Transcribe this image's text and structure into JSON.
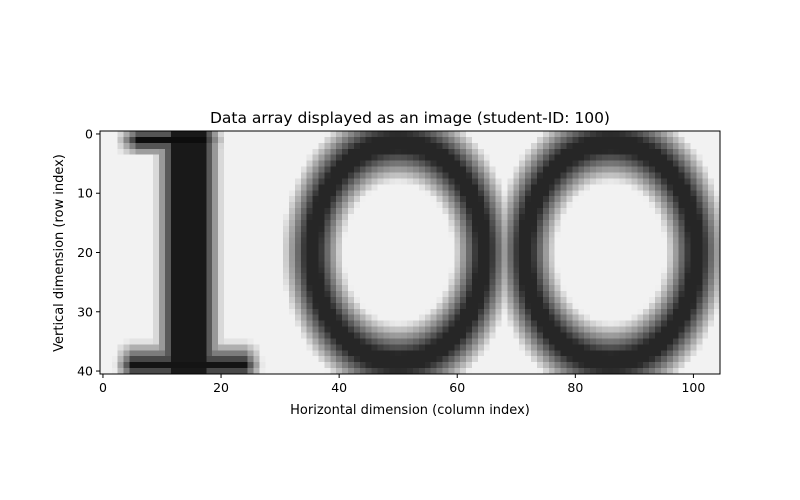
{
  "chart_data": {
    "type": "heatmap",
    "title": "Data array displayed as an image (student-ID: 100)",
    "xlabel": "Horizontal dimension (column index)",
    "ylabel": "Vertical dimension (row index)",
    "xlim": [
      -0.5,
      104.5
    ],
    "ylim": [
      40.5,
      -0.5
    ],
    "xticks": [
      {
        "value": 0,
        "label": "0"
      },
      {
        "value": 20,
        "label": "20"
      },
      {
        "value": 40,
        "label": "40"
      },
      {
        "value": 60,
        "label": "60"
      },
      {
        "value": 80,
        "label": "80"
      },
      {
        "value": 100,
        "label": "100"
      }
    ],
    "yticks": [
      {
        "value": 0,
        "label": "0"
      },
      {
        "value": 10,
        "label": "10"
      },
      {
        "value": 20,
        "label": "20"
      },
      {
        "value": 30,
        "label": "30"
      },
      {
        "value": 40,
        "label": "40"
      }
    ],
    "colormap": "gray_r",
    "grid": false,
    "array_shape": [
      41,
      105
    ],
    "depicted_content": "100"
  }
}
